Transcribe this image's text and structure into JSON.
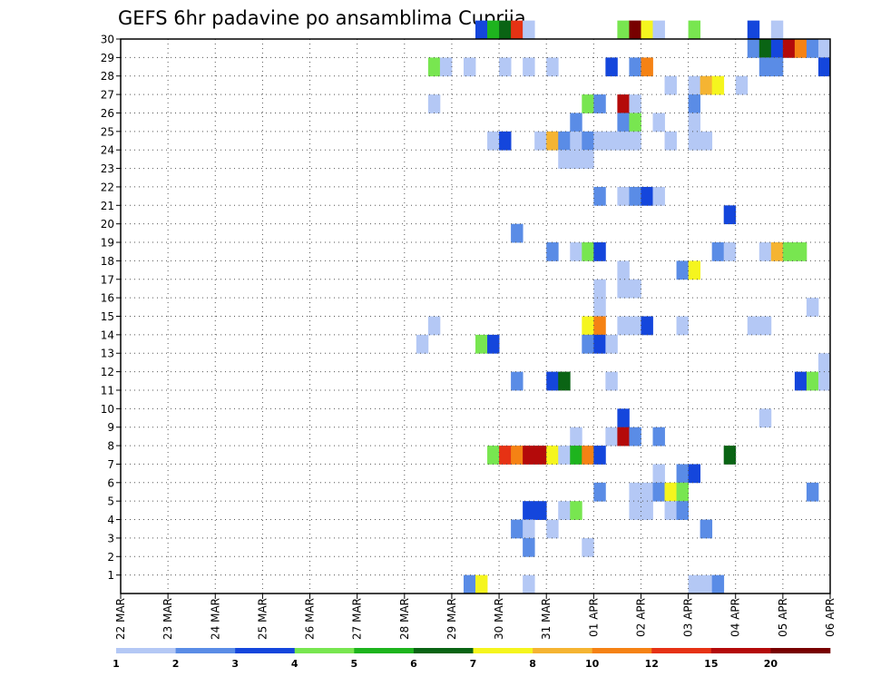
{
  "chart_data": {
    "type": "heatmap",
    "title": "GEFS 6hr padavine po ansamblima Cuprija",
    "x_labels": [
      "22 MAR",
      "23 MAR",
      "24 MAR",
      "25 MAR",
      "26 MAR",
      "27 MAR",
      "28 MAR",
      "29 MAR",
      "30 MAR",
      "31 MAR",
      "01 APR",
      "02 APR",
      "03 APR",
      "04 APR",
      "05 APR",
      "06 APR"
    ],
    "y_labels": [
      "1",
      "2",
      "3",
      "4",
      "5",
      "6",
      "7",
      "8",
      "9",
      "10",
      "11",
      "12",
      "13",
      "14",
      "15",
      "16",
      "17",
      "18",
      "19",
      "20",
      "21",
      "22",
      "23",
      "24",
      "25",
      "26",
      "27",
      "28",
      "29",
      "30"
    ],
    "y_range": [
      0,
      30
    ],
    "x_steps_per_day": 4,
    "x_steps_total": 60,
    "grid": true,
    "colorbar": {
      "labels": [
        "1",
        "2",
        "3",
        "4",
        "5",
        "6",
        "7",
        "8",
        "10",
        "12",
        "15",
        "20"
      ],
      "colors": [
        "#b4c8f5",
        "#5a8ce6",
        "#1446dc",
        "#78e650",
        "#1eb41e",
        "#0a6414",
        "#f5f51e",
        "#f5b432",
        "#f58214",
        "#e63214",
        "#b40a0a",
        "#780000"
      ]
    },
    "cells": [
      {
        "step": 31,
        "member": 30,
        "level": 2
      },
      {
        "step": 32,
        "member": 30,
        "level": 4
      },
      {
        "step": 33,
        "member": 30,
        "level": 5
      },
      {
        "step": 34,
        "member": 30,
        "level": 9
      },
      {
        "step": 35,
        "member": 30,
        "level": 0
      },
      {
        "step": 43,
        "member": 30,
        "level": 3
      },
      {
        "step": 44,
        "member": 30,
        "level": 11
      },
      {
        "step": 45,
        "member": 30,
        "level": 6
      },
      {
        "step": 46,
        "member": 30,
        "level": 0
      },
      {
        "step": 49,
        "member": 30,
        "level": 3
      },
      {
        "step": 54,
        "member": 30,
        "level": 2
      },
      {
        "step": 56,
        "member": 30,
        "level": 0
      },
      {
        "step": 54,
        "member": 29,
        "level": 1
      },
      {
        "step": 55,
        "member": 29,
        "level": 5
      },
      {
        "step": 56,
        "member": 29,
        "level": 2
      },
      {
        "step": 57,
        "member": 29,
        "level": 10
      },
      {
        "step": 58,
        "member": 29,
        "level": 8
      },
      {
        "step": 59,
        "member": 29,
        "level": 1
      },
      {
        "step": 60,
        "member": 29,
        "level": 0
      },
      {
        "step": 27,
        "member": 28,
        "level": 3
      },
      {
        "step": 28,
        "member": 28,
        "level": 0
      },
      {
        "step": 30,
        "member": 28,
        "level": 0
      },
      {
        "step": 33,
        "member": 28,
        "level": 0
      },
      {
        "step": 35,
        "member": 28,
        "level": 0
      },
      {
        "step": 37,
        "member": 28,
        "level": 0
      },
      {
        "step": 42,
        "member": 28,
        "level": 2
      },
      {
        "step": 44,
        "member": 28,
        "level": 1
      },
      {
        "step": 45,
        "member": 28,
        "level": 8
      },
      {
        "step": 55,
        "member": 28,
        "level": 1
      },
      {
        "step": 56,
        "member": 28,
        "level": 1
      },
      {
        "step": 60,
        "member": 28,
        "level": 2
      },
      {
        "step": 47,
        "member": 27,
        "level": 0
      },
      {
        "step": 49,
        "member": 27,
        "level": 0
      },
      {
        "step": 50,
        "member": 27,
        "level": 7
      },
      {
        "step": 51,
        "member": 27,
        "level": 6
      },
      {
        "step": 53,
        "member": 27,
        "level": 0
      },
      {
        "step": 27,
        "member": 26,
        "level": 0
      },
      {
        "step": 40,
        "member": 26,
        "level": 3
      },
      {
        "step": 41,
        "member": 26,
        "level": 1
      },
      {
        "step": 43,
        "member": 26,
        "level": 10
      },
      {
        "step": 44,
        "member": 26,
        "level": 0
      },
      {
        "step": 49,
        "member": 26,
        "level": 1
      },
      {
        "step": 39,
        "member": 25,
        "level": 1
      },
      {
        "step": 43,
        "member": 25,
        "level": 1
      },
      {
        "step": 44,
        "member": 25,
        "level": 3
      },
      {
        "step": 46,
        "member": 25,
        "level": 0
      },
      {
        "step": 49,
        "member": 25,
        "level": 0
      },
      {
        "step": 32,
        "member": 24,
        "level": 0
      },
      {
        "step": 33,
        "member": 24,
        "level": 2
      },
      {
        "step": 36,
        "member": 24,
        "level": 0
      },
      {
        "step": 37,
        "member": 24,
        "level": 7
      },
      {
        "step": 38,
        "member": 24,
        "level": 1
      },
      {
        "step": 39,
        "member": 24,
        "level": 0
      },
      {
        "step": 40,
        "member": 24,
        "level": 1
      },
      {
        "step": 41,
        "member": 24,
        "level": 0
      },
      {
        "step": 42,
        "member": 24,
        "level": 0
      },
      {
        "step": 43,
        "member": 24,
        "level": 0
      },
      {
        "step": 44,
        "member": 24,
        "level": 0
      },
      {
        "step": 47,
        "member": 24,
        "level": 0
      },
      {
        "step": 49,
        "member": 24,
        "level": 0
      },
      {
        "step": 50,
        "member": 24,
        "level": 0
      },
      {
        "step": 38,
        "member": 23,
        "level": 0
      },
      {
        "step": 39,
        "member": 23,
        "level": 0
      },
      {
        "step": 40,
        "member": 23,
        "level": 0
      },
      {
        "step": 41,
        "member": 21,
        "level": 1
      },
      {
        "step": 43,
        "member": 21,
        "level": 0
      },
      {
        "step": 44,
        "member": 21,
        "level": 1
      },
      {
        "step": 45,
        "member": 21,
        "level": 2
      },
      {
        "step": 46,
        "member": 21,
        "level": 0
      },
      {
        "step": 52,
        "member": 20,
        "level": 2
      },
      {
        "step": 34,
        "member": 19,
        "level": 1
      },
      {
        "step": 37,
        "member": 18,
        "level": 1
      },
      {
        "step": 39,
        "member": 18,
        "level": 0
      },
      {
        "step": 40,
        "member": 18,
        "level": 3
      },
      {
        "step": 41,
        "member": 18,
        "level": 2
      },
      {
        "step": 51,
        "member": 18,
        "level": 1
      },
      {
        "step": 52,
        "member": 18,
        "level": 0
      },
      {
        "step": 55,
        "member": 18,
        "level": 0
      },
      {
        "step": 56,
        "member": 18,
        "level": 7
      },
      {
        "step": 57,
        "member": 18,
        "level": 3
      },
      {
        "step": 58,
        "member": 18,
        "level": 3
      },
      {
        "step": 43,
        "member": 17,
        "level": 0
      },
      {
        "step": 48,
        "member": 17,
        "level": 1
      },
      {
        "step": 49,
        "member": 17,
        "level": 6
      },
      {
        "step": 41,
        "member": 16,
        "level": 0
      },
      {
        "step": 43,
        "member": 16,
        "level": 0
      },
      {
        "step": 44,
        "member": 16,
        "level": 0
      },
      {
        "step": 41,
        "member": 15,
        "level": 0
      },
      {
        "step": 59,
        "member": 15,
        "level": 0
      },
      {
        "step": 27,
        "member": 14,
        "level": 0
      },
      {
        "step": 40,
        "member": 14,
        "level": 6
      },
      {
        "step": 41,
        "member": 14,
        "level": 8
      },
      {
        "step": 43,
        "member": 14,
        "level": 0
      },
      {
        "step": 44,
        "member": 14,
        "level": 0
      },
      {
        "step": 45,
        "member": 14,
        "level": 2
      },
      {
        "step": 48,
        "member": 14,
        "level": 0
      },
      {
        "step": 54,
        "member": 14,
        "level": 0
      },
      {
        "step": 55,
        "member": 14,
        "level": 0
      },
      {
        "step": 26,
        "member": 13,
        "level": 0
      },
      {
        "step": 31,
        "member": 13,
        "level": 3
      },
      {
        "step": 32,
        "member": 13,
        "level": 2
      },
      {
        "step": 40,
        "member": 13,
        "level": 1
      },
      {
        "step": 41,
        "member": 13,
        "level": 2
      },
      {
        "step": 42,
        "member": 13,
        "level": 0
      },
      {
        "step": 60,
        "member": 12,
        "level": 0
      },
      {
        "step": 34,
        "member": 11,
        "level": 1
      },
      {
        "step": 37,
        "member": 11,
        "level": 2
      },
      {
        "step": 38,
        "member": 11,
        "level": 5
      },
      {
        "step": 42,
        "member": 11,
        "level": 0
      },
      {
        "step": 58,
        "member": 11,
        "level": 2
      },
      {
        "step": 59,
        "member": 11,
        "level": 3
      },
      {
        "step": 60,
        "member": 11,
        "level": 0
      },
      {
        "step": 43,
        "member": 9,
        "level": 2
      },
      {
        "step": 55,
        "member": 9,
        "level": 0
      },
      {
        "step": 39,
        "member": 8,
        "level": 0
      },
      {
        "step": 42,
        "member": 8,
        "level": 0
      },
      {
        "step": 43,
        "member": 8,
        "level": 10
      },
      {
        "step": 44,
        "member": 8,
        "level": 1
      },
      {
        "step": 46,
        "member": 8,
        "level": 1
      },
      {
        "step": 32,
        "member": 7,
        "level": 3
      },
      {
        "step": 33,
        "member": 7,
        "level": 9
      },
      {
        "step": 34,
        "member": 7,
        "level": 8
      },
      {
        "step": 35,
        "member": 7,
        "level": 10
      },
      {
        "step": 36,
        "member": 7,
        "level": 10
      },
      {
        "step": 37,
        "member": 7,
        "level": 6
      },
      {
        "step": 38,
        "member": 7,
        "level": 0
      },
      {
        "step": 39,
        "member": 7,
        "level": 4
      },
      {
        "step": 40,
        "member": 7,
        "level": 8
      },
      {
        "step": 41,
        "member": 7,
        "level": 2
      },
      {
        "step": 52,
        "member": 7,
        "level": 5
      },
      {
        "step": 46,
        "member": 6,
        "level": 0
      },
      {
        "step": 48,
        "member": 6,
        "level": 1
      },
      {
        "step": 49,
        "member": 6,
        "level": 2
      },
      {
        "step": 41,
        "member": 5,
        "level": 1
      },
      {
        "step": 44,
        "member": 5,
        "level": 0
      },
      {
        "step": 45,
        "member": 5,
        "level": 0
      },
      {
        "step": 46,
        "member": 5,
        "level": 1
      },
      {
        "step": 47,
        "member": 5,
        "level": 6
      },
      {
        "step": 48,
        "member": 5,
        "level": 3
      },
      {
        "step": 59,
        "member": 5,
        "level": 1
      },
      {
        "step": 35,
        "member": 4,
        "level": 2
      },
      {
        "step": 36,
        "member": 4,
        "level": 2
      },
      {
        "step": 38,
        "member": 4,
        "level": 0
      },
      {
        "step": 39,
        "member": 4,
        "level": 3
      },
      {
        "step": 44,
        "member": 4,
        "level": 0
      },
      {
        "step": 45,
        "member": 4,
        "level": 0
      },
      {
        "step": 47,
        "member": 4,
        "level": 0
      },
      {
        "step": 48,
        "member": 4,
        "level": 1
      },
      {
        "step": 34,
        "member": 3,
        "level": 1
      },
      {
        "step": 35,
        "member": 3,
        "level": 0
      },
      {
        "step": 37,
        "member": 3,
        "level": 0
      },
      {
        "step": 50,
        "member": 3,
        "level": 1
      },
      {
        "step": 35,
        "member": 2,
        "level": 1
      },
      {
        "step": 40,
        "member": 2,
        "level": 0
      },
      {
        "step": 30,
        "member": 0,
        "level": 1
      },
      {
        "step": 31,
        "member": 0,
        "level": 6
      },
      {
        "step": 35,
        "member": 0,
        "level": 0
      },
      {
        "step": 49,
        "member": 0,
        "level": 0
      },
      {
        "step": 50,
        "member": 0,
        "level": 0
      },
      {
        "step": 51,
        "member": 0,
        "level": 1
      }
    ]
  }
}
